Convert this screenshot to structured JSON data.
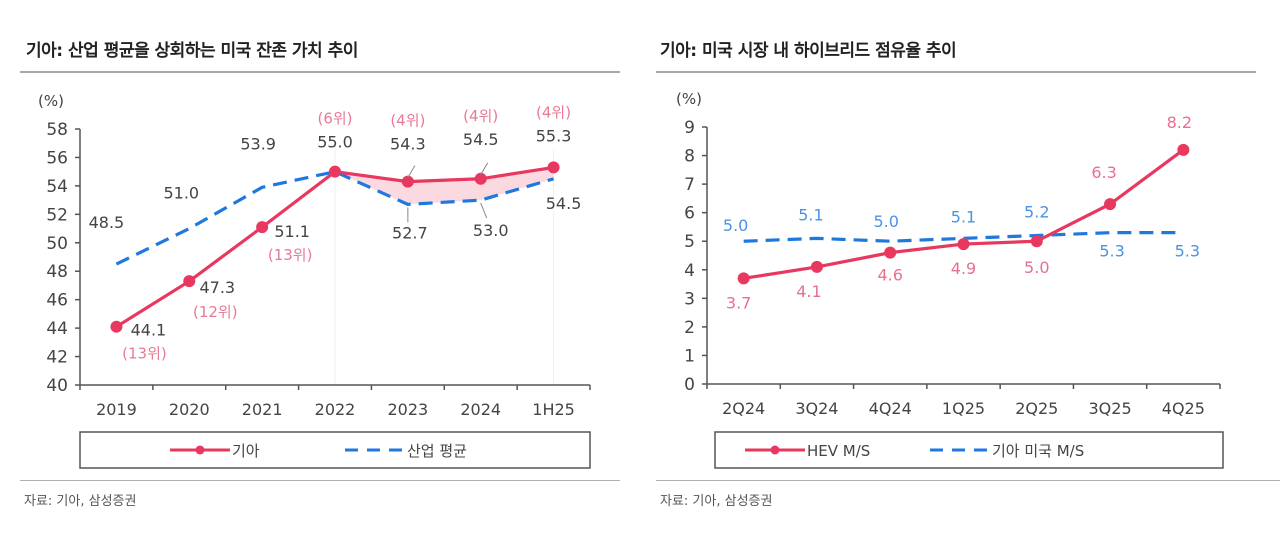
{
  "chart_data": [
    {
      "type": "line",
      "title": "기아: 산업 평균을 상회하는 미국 잔존 가치 추이",
      "ylabel": "(%)",
      "xlabel": "",
      "ylim": [
        40,
        58
      ],
      "yticks": [
        40,
        42,
        44,
        46,
        48,
        50,
        52,
        54,
        56,
        58
      ],
      "categories": [
        "2019",
        "2020",
        "2021",
        "2022",
        "2023",
        "2024",
        "1H25"
      ],
      "series": [
        {
          "name": "기아",
          "color": "#e8385f",
          "style": "solid-marker",
          "values": [
            44.1,
            47.3,
            51.1,
            55.0,
            54.3,
            54.5,
            55.3
          ],
          "labels": [
            "44.1",
            "47.3",
            "51.1",
            "55.0",
            "54.3",
            "54.5",
            "55.3"
          ],
          "rank_labels": [
            "(13위)",
            "(12위)",
            "(13위)",
            "(6위)",
            "(4위)",
            "(4위)",
            "(4위)"
          ]
        },
        {
          "name": "산업 평균",
          "color": "#1f78e0",
          "style": "dashed",
          "values": [
            48.5,
            51.0,
            53.9,
            55.0,
            52.7,
            53.0,
            54.5
          ],
          "labels": [
            "48.5",
            "51.0",
            "53.9",
            "",
            "52.7",
            "53.0",
            "54.5"
          ]
        }
      ],
      "shaded_gap": {
        "from_category": "2022",
        "to_category": "1H25",
        "color": "#fbd9e1"
      },
      "legend": {
        "position": "bottom",
        "items": [
          "기아",
          "산업 평균"
        ]
      },
      "grid": false
    },
    {
      "type": "line",
      "title": "기아: 미국 시장 내 하이브리드 점유율 추이",
      "ylabel": "(%)",
      "xlabel": "",
      "ylim": [
        0,
        9
      ],
      "yticks": [
        0,
        1,
        2,
        3,
        4,
        5,
        6,
        7,
        8,
        9
      ],
      "categories": [
        "2Q24",
        "3Q24",
        "4Q24",
        "1Q25",
        "2Q25",
        "3Q25",
        "4Q25"
      ],
      "series": [
        {
          "name": "HEV M/S",
          "color": "#e8385f",
          "style": "solid-marker",
          "values": [
            3.7,
            4.1,
            4.6,
            4.9,
            5.0,
            6.3,
            8.2
          ],
          "labels": [
            "3.7",
            "4.1",
            "4.6",
            "4.9",
            "5.0",
            "6.3",
            "8.2"
          ]
        },
        {
          "name": "기아 미국 M/S",
          "color": "#1f78e0",
          "style": "dashed",
          "values": [
            5.0,
            5.1,
            5.0,
            5.1,
            5.2,
            5.3,
            5.3
          ],
          "labels": [
            "5.0",
            "5.1",
            "5.0",
            "5.1",
            "5.2",
            "5.3",
            "5.3"
          ]
        }
      ],
      "legend": {
        "position": "bottom",
        "items": [
          "HEV M/S",
          "기아 미국 M/S"
        ]
      },
      "grid": false
    }
  ],
  "left": {
    "title": "기아: 산업 평균을 상회하는 미국 잔존 가치 추이",
    "unit": "(%)",
    "legend": [
      "기아",
      "산업 평균"
    ],
    "source": "자료: 기아, 삼성증권"
  },
  "right": {
    "title": "기아: 미국 시장 내 하이브리드 점유율 추이",
    "unit": "(%)",
    "legend": [
      "HEV M/S",
      "기아 미국 M/S"
    ],
    "source": "자료: 기아, 삼성증권"
  },
  "colors": {
    "kia": "#e8385f",
    "avg": "#1f78e0",
    "rank": "#e87a95",
    "hev_label": "#e8708e",
    "ms_label": "#4a93e6",
    "gap_fill": "#fbd9e1"
  }
}
